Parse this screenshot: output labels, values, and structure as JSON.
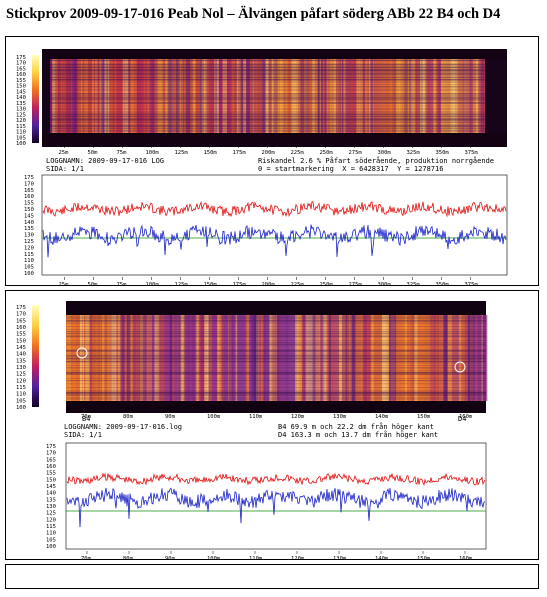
{
  "page_title": "Stickprov 2009-09-17-016 Peab Nol – Älvängen påfart söderg ABb 22 B4 och D4",
  "panel1": {
    "thermal_scale": [
      "175",
      "170",
      "165",
      "160",
      "155",
      "150",
      "145",
      "140",
      "135",
      "130",
      "125",
      "120",
      "115",
      "110",
      "105",
      "100"
    ],
    "distance_ticks": [
      "25m",
      "50m",
      "75m",
      "100m",
      "125m",
      "150m",
      "175m",
      "200m",
      "225m",
      "250m",
      "275m",
      "300m",
      "325m",
      "350m",
      "375m"
    ],
    "log_name": "LOGGNAMN: 2009-09-17-016 LOG",
    "page": "SIDA: 1/1",
    "info_line1": "Riskandel 2.6 % Påfart söderående, produktion norrgående",
    "info_line2": "0 = startmarkering  X = 6428317  Y = 1278716",
    "chart_scale": [
      "175",
      "170",
      "165",
      "160",
      "155",
      "150",
      "145",
      "140",
      "135",
      "130",
      "125",
      "120",
      "115",
      "110",
      "105",
      "100"
    ]
  },
  "panel2": {
    "thermal_scale": [
      "175",
      "170",
      "165",
      "160",
      "155",
      "150",
      "145",
      "140",
      "135",
      "130",
      "125",
      "120",
      "115",
      "110",
      "105",
      "100"
    ],
    "distance_ticks": [
      "70m",
      "80m",
      "90m",
      "100m",
      "110m",
      "120m",
      "130m",
      "140m",
      "150m",
      "160m"
    ],
    "marker_b4": "B4",
    "marker_d4": "D4",
    "log_name": "LOGGNAMN: 2009-09-17-016.log",
    "page": "SIDA: 1/1",
    "info_line1": "B4 69.9 m och 22.2 dm från höger kant",
    "info_line2": "D4 163.3 m och 13.7 dm från höger kant",
    "chart_scale": [
      "175",
      "170",
      "165",
      "160",
      "155",
      "150",
      "145",
      "140",
      "135",
      "130",
      "125",
      "120",
      "115",
      "110",
      "105",
      "100"
    ]
  },
  "colors": {
    "red_line": "#e01010",
    "blue_line": "#1a22c8",
    "green_line": "#109010",
    "thermal_dark": "#2a0a4a",
    "thermal_hot": "#f08a20"
  }
}
